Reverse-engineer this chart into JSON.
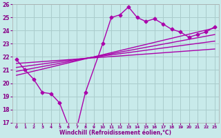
{
  "xlabel": "Windchill (Refroidissement éolien,°C)",
  "bg_color": "#c8eaea",
  "line_color": "#aa00aa",
  "grid_color": "#aacccc",
  "xlim": [
    -0.5,
    23.5
  ],
  "ylim": [
    17,
    26
  ],
  "yticks": [
    17,
    18,
    19,
    20,
    21,
    22,
    23,
    24,
    25,
    26
  ],
  "xticks": [
    0,
    1,
    2,
    3,
    4,
    5,
    6,
    7,
    8,
    9,
    10,
    11,
    12,
    13,
    14,
    15,
    16,
    17,
    18,
    19,
    20,
    21,
    22,
    23
  ],
  "xtick_labels": [
    "0",
    "1",
    "2",
    "3",
    "4",
    "5",
    "6",
    "7",
    "8",
    "9",
    "10",
    "11",
    "12",
    "13",
    "14",
    "15",
    "16",
    "17",
    "18",
    "19",
    "20",
    "21",
    "22",
    "23"
  ],
  "main_series": {
    "x": [
      0,
      1,
      2,
      3,
      4,
      5,
      6,
      7,
      8,
      10,
      11,
      12,
      13,
      14,
      15,
      16,
      17,
      18,
      19,
      20,
      21,
      22,
      23
    ],
    "y": [
      21.8,
      21.0,
      20.3,
      19.3,
      19.2,
      18.5,
      16.8,
      16.6,
      19.3,
      23.0,
      25.0,
      25.2,
      25.8,
      25.0,
      24.7,
      24.9,
      24.5,
      24.1,
      23.9,
      23.5,
      23.7,
      23.9,
      24.3
    ]
  },
  "linear_lines": [
    {
      "x": [
        0,
        23
      ],
      "y": [
        20.6,
        24.2
      ]
    },
    {
      "x": [
        0,
        23
      ],
      "y": [
        20.9,
        23.7
      ]
    },
    {
      "x": [
        0,
        23
      ],
      "y": [
        21.2,
        23.2
      ]
    },
    {
      "x": [
        0,
        23
      ],
      "y": [
        21.5,
        22.6
      ]
    }
  ]
}
